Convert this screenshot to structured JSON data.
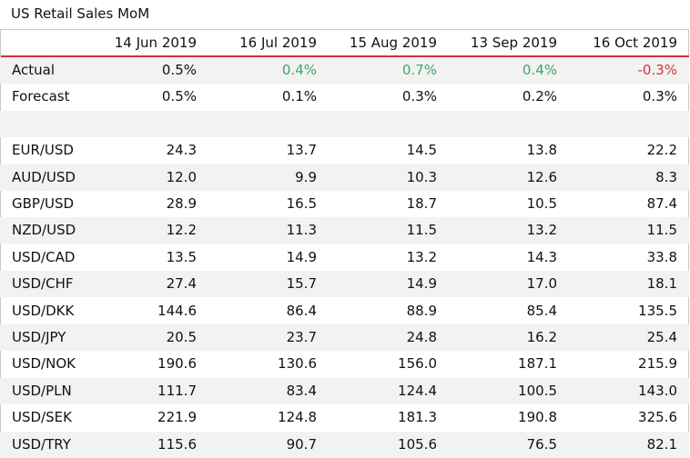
{
  "title": "US Retail Sales MoM",
  "columns": [
    "14 Jun 2019",
    "16 Jul 2019",
    "15 Aug 2019",
    "13 Sep 2019",
    "16 Oct 2019"
  ],
  "colors": {
    "positive": "#3fa56a",
    "negative": "#d13438",
    "header_rule": "#d13438",
    "shade": "#f2f2f2"
  },
  "chart_data": {
    "type": "table",
    "title": "US Retail Sales MoM",
    "columns": [
      "14 Jun 2019",
      "16 Jul 2019",
      "15 Aug 2019",
      "13 Sep 2019",
      "16 Oct 2019"
    ],
    "rows": [
      {
        "label": "Actual",
        "values": [
          "0.5%",
          "0.4%",
          "0.7%",
          "0.4%",
          "-0.3%"
        ],
        "tones": [
          "",
          "pos",
          "pos",
          "pos",
          "neg"
        ]
      },
      {
        "label": "Forecast",
        "values": [
          "0.5%",
          "0.1%",
          "0.3%",
          "0.2%",
          "0.3%"
        ]
      },
      {
        "label": "",
        "values": [
          "",
          "",
          "",
          "",
          ""
        ]
      },
      {
        "label": "EUR/USD",
        "values": [
          "24.3",
          "13.7",
          "14.5",
          "13.8",
          "22.2"
        ]
      },
      {
        "label": "AUD/USD",
        "values": [
          "12.0",
          "9.9",
          "10.3",
          "12.6",
          "8.3"
        ]
      },
      {
        "label": "GBP/USD",
        "values": [
          "28.9",
          "16.5",
          "18.7",
          "10.5",
          "87.4"
        ]
      },
      {
        "label": "NZD/USD",
        "values": [
          "12.2",
          "11.3",
          "11.5",
          "13.2",
          "11.5"
        ]
      },
      {
        "label": "USD/CAD",
        "values": [
          "13.5",
          "14.9",
          "13.2",
          "14.3",
          "33.8"
        ]
      },
      {
        "label": "USD/CHF",
        "values": [
          "27.4",
          "15.7",
          "14.9",
          "17.0",
          "18.1"
        ]
      },
      {
        "label": "USD/DKK",
        "values": [
          "144.6",
          "86.4",
          "88.9",
          "85.4",
          "135.5"
        ]
      },
      {
        "label": "USD/JPY",
        "values": [
          "20.5",
          "23.7",
          "24.8",
          "16.2",
          "25.4"
        ]
      },
      {
        "label": "USD/NOK",
        "values": [
          "190.6",
          "130.6",
          "156.0",
          "187.1",
          "215.9"
        ]
      },
      {
        "label": "USD/PLN",
        "values": [
          "111.7",
          "83.4",
          "124.4",
          "100.5",
          "143.0"
        ]
      },
      {
        "label": "USD/SEK",
        "values": [
          "221.9",
          "124.8",
          "181.3",
          "190.8",
          "325.6"
        ]
      },
      {
        "label": "USD/TRY",
        "values": [
          "115.6",
          "90.7",
          "105.6",
          "76.5",
          "82.1"
        ]
      }
    ]
  }
}
